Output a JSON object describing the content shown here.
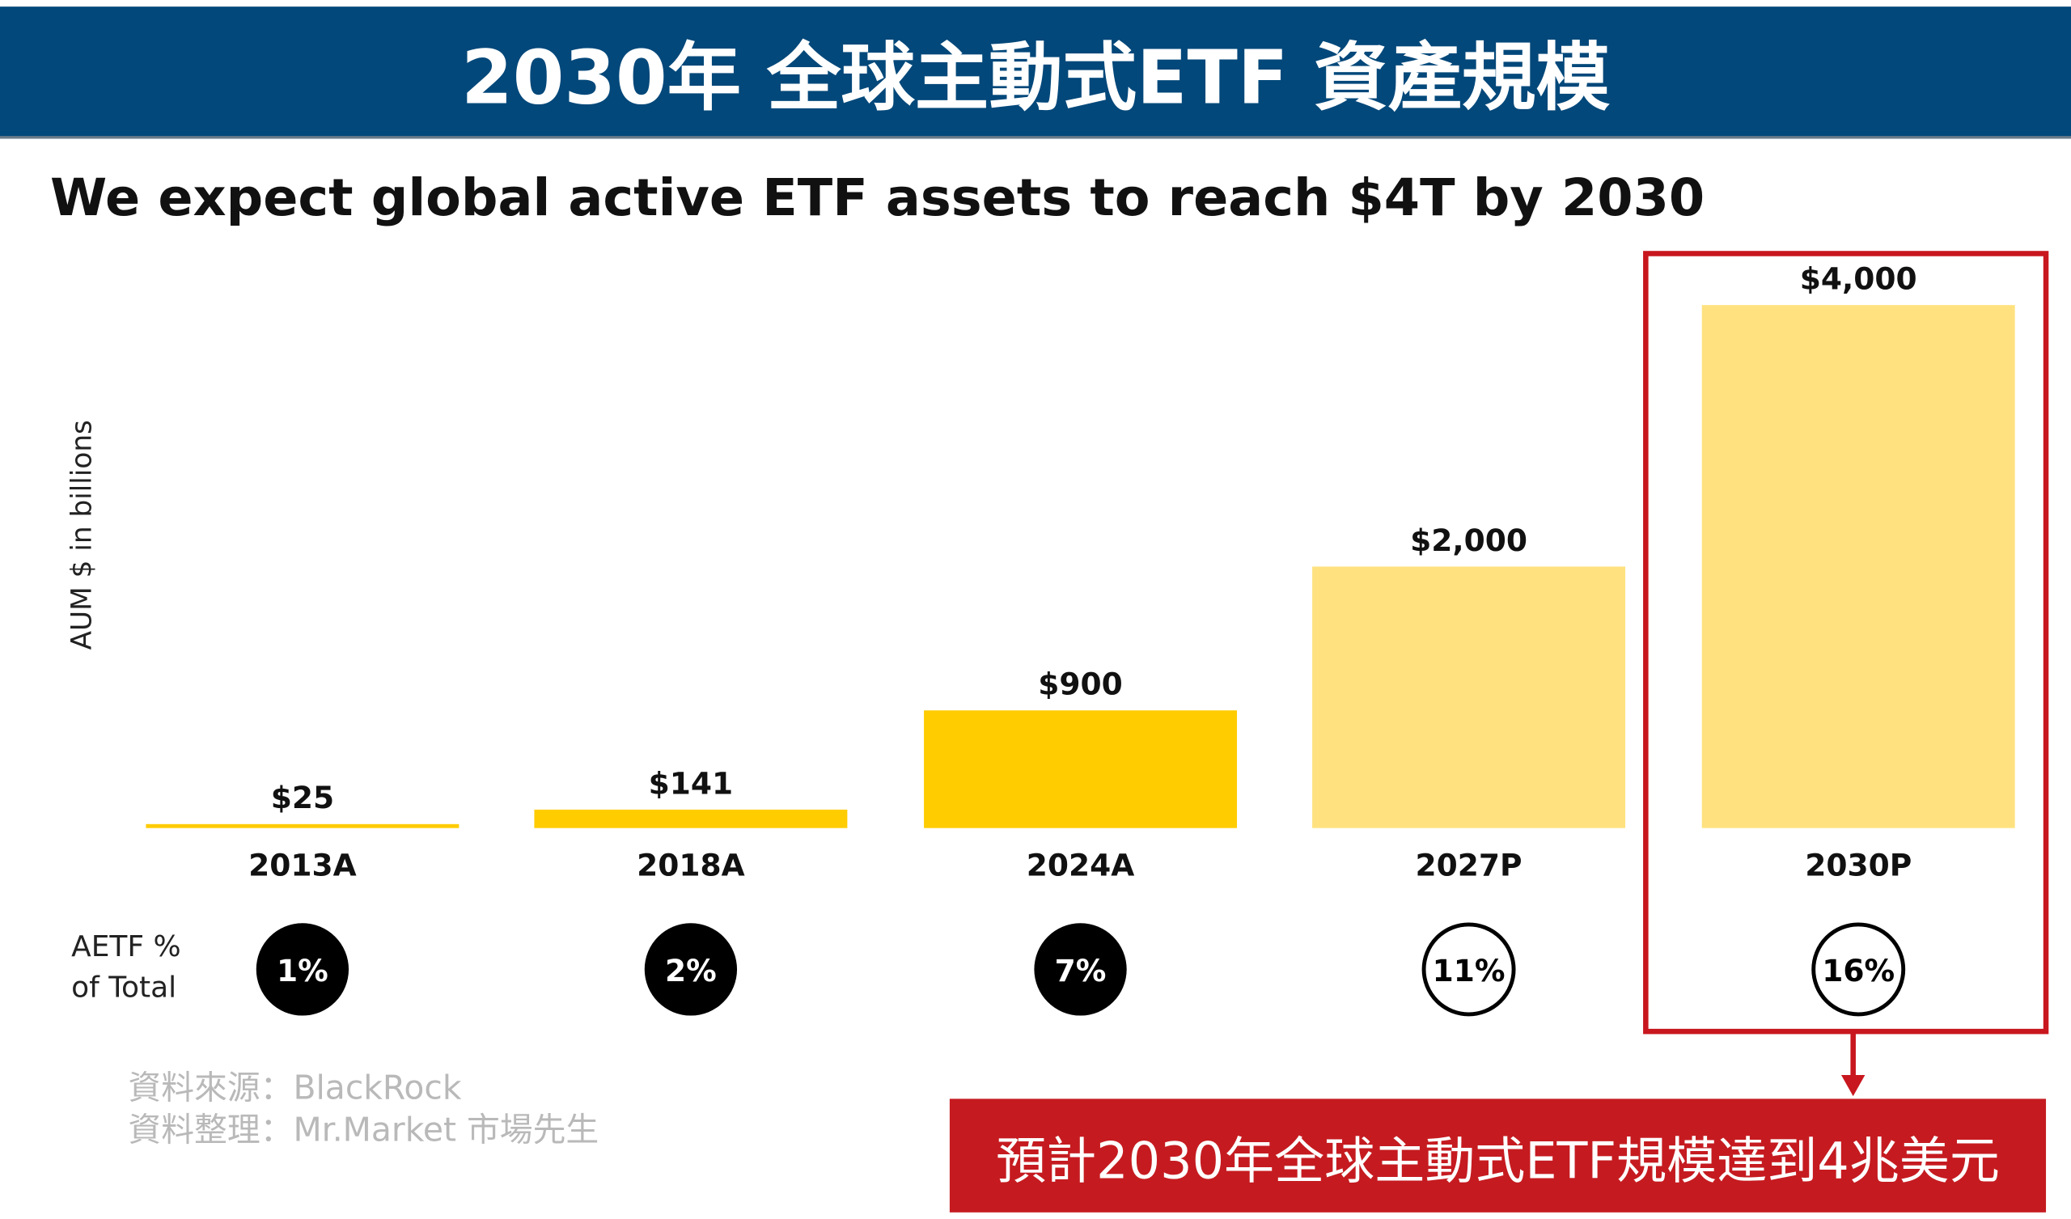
{
  "header": {
    "title": "2030年 全球主動式ETF 資產規模"
  },
  "chart_data": {
    "type": "bar",
    "title": "We expect global active ETF assets to reach $4T by 2030",
    "ylabel": "AUM $ in billions",
    "xlabel": "",
    "categories": [
      "2013A",
      "2018A",
      "2024A",
      "2027P",
      "2030P"
    ],
    "values": [
      25,
      141,
      900,
      2000,
      4000
    ],
    "value_labels": [
      "$25",
      "$141",
      "$900",
      "$2,000",
      "$4,000"
    ],
    "ylim": [
      0,
      4000
    ],
    "grid": false,
    "bar_colors": [
      "#ffcc00",
      "#ffcc00",
      "#ffcc00",
      "#ffe27f",
      "#ffe27f"
    ],
    "share_label": [
      "AETF %",
      "of Total"
    ],
    "share_values": [
      "1%",
      "2%",
      "7%",
      "11%",
      "16%"
    ],
    "share_filled": [
      true,
      true,
      true,
      false,
      false
    ]
  },
  "highlight": {
    "color": "#c8171e",
    "category": "2030P"
  },
  "callout": {
    "text": "預計2030年全球主動式ETF規模達到4兆美元"
  },
  "source": {
    "line1": "資料來源：BlackRock",
    "line2": "資料整理：Mr.Market 市場先生"
  }
}
